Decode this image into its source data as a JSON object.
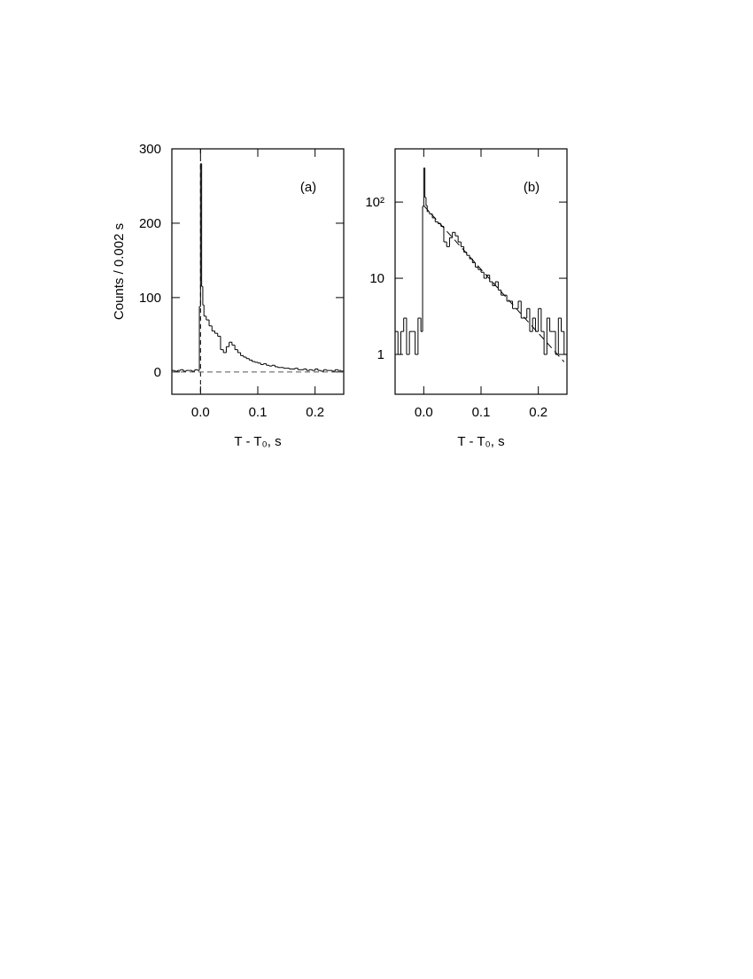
{
  "chart_data": [
    {
      "type": "histogram",
      "annotation": "(a)",
      "x_label": "T - T₀, s",
      "y_label": "Counts / 0.002 s",
      "bins": [
        -0.05,
        -0.045,
        -0.04,
        -0.035,
        -0.03,
        -0.025,
        -0.02,
        -0.015,
        -0.01,
        -0.005,
        -0.002,
        0,
        0.002,
        0.004,
        0.006,
        0.01,
        0.015,
        0.02,
        0.025,
        0.03,
        0.035,
        0.04,
        0.045,
        0.05,
        0.055,
        0.06,
        0.065,
        0.07,
        0.075,
        0.08,
        0.085,
        0.09,
        0.095,
        0.1,
        0.105,
        0.11,
        0.115,
        0.12,
        0.125,
        0.13,
        0.135,
        0.14,
        0.145,
        0.15,
        0.155,
        0.16,
        0.165,
        0.17,
        0.175,
        0.18,
        0.185,
        0.19,
        0.195,
        0.2,
        0.205,
        0.21,
        0.215,
        0.22,
        0.225,
        0.23,
        0.235,
        0.24,
        0.245,
        0.25
      ],
      "values": [
        2,
        1,
        2,
        3,
        1,
        2,
        2,
        1,
        3,
        2,
        88,
        280,
        115,
        90,
        75,
        70,
        62,
        55,
        52,
        48,
        30,
        26,
        34,
        40,
        36,
        30,
        26,
        22,
        20,
        18,
        16,
        14,
        13,
        12,
        10,
        11,
        9,
        8,
        9,
        7,
        6,
        6,
        5,
        5,
        4,
        4,
        5,
        3,
        3,
        4,
        2,
        3,
        2,
        4,
        2,
        1,
        3,
        2,
        2,
        1,
        3,
        2,
        1
      ],
      "color": "#000000",
      "xlim": [
        -0.05,
        0.25
      ],
      "xticks": [
        {
          "value": 0,
          "label": "0.0"
        },
        0.1,
        0.2
      ],
      "ylim": [
        -30,
        300
      ],
      "yticks": [
        0,
        100,
        200,
        300
      ],
      "log_y": false,
      "vlines": [
        0
      ],
      "hlines": [
        0
      ]
    },
    {
      "type": "histogram",
      "annotation": "(b)",
      "x_label": "T - T₀, s",
      "bins": [
        -0.05,
        -0.045,
        -0.04,
        -0.035,
        -0.03,
        -0.025,
        -0.02,
        -0.015,
        -0.01,
        -0.005,
        -0.002,
        0,
        0.002,
        0.004,
        0.006,
        0.01,
        0.015,
        0.02,
        0.025,
        0.03,
        0.035,
        0.04,
        0.045,
        0.05,
        0.055,
        0.06,
        0.065,
        0.07,
        0.075,
        0.08,
        0.085,
        0.09,
        0.095,
        0.1,
        0.105,
        0.11,
        0.115,
        0.12,
        0.125,
        0.13,
        0.135,
        0.14,
        0.145,
        0.15,
        0.155,
        0.16,
        0.165,
        0.17,
        0.175,
        0.18,
        0.185,
        0.19,
        0.195,
        0.2,
        0.205,
        0.21,
        0.215,
        0.22,
        0.225,
        0.23,
        0.235,
        0.24,
        0.245,
        0.25
      ],
      "values": [
        2,
        1,
        2,
        3,
        1,
        2,
        2,
        1,
        3,
        2,
        88,
        280,
        115,
        90,
        75,
        70,
        62,
        55,
        52,
        48,
        30,
        26,
        34,
        40,
        36,
        30,
        26,
        22,
        20,
        18,
        16,
        14,
        13,
        12,
        10,
        11,
        9,
        8,
        9,
        7,
        6,
        6,
        5,
        5,
        4,
        4,
        5,
        3,
        3,
        4,
        2,
        3,
        2,
        4,
        2,
        1,
        3,
        2,
        2,
        1,
        3,
        2,
        1
      ],
      "color": "#000000",
      "xlim": [
        -0.05,
        0.25
      ],
      "xticks": [
        {
          "value": 0,
          "label": "0.0"
        },
        0.1,
        0.2
      ],
      "ylim": [
        0.3,
        500
      ],
      "yticks": [
        1,
        10,
        {
          "value": 100,
          "label": "10²"
        }
      ],
      "log_y": true,
      "fit": {
        "x": [
          0,
          0.245
        ],
        "y": [
          90,
          0.8
        ]
      }
    }
  ]
}
